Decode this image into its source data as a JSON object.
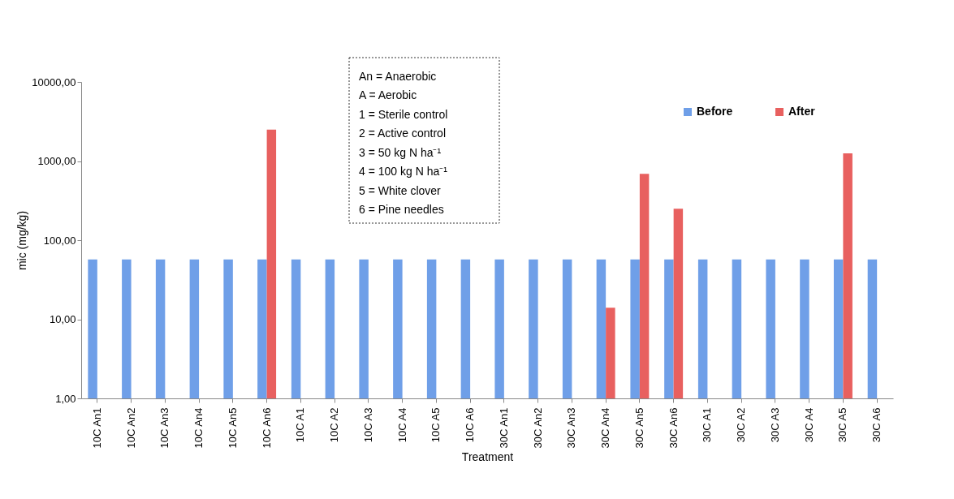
{
  "chart_data": {
    "type": "bar",
    "xlabel": "Treatment",
    "ylabel": "mic (mg/kg)",
    "log": "y",
    "ylim": [
      1,
      10000
    ],
    "yticks": [
      {
        "value": 1,
        "label": "1,00"
      },
      {
        "value": 10,
        "label": "10,00"
      },
      {
        "value": 100,
        "label": "100,00"
      },
      {
        "value": 1000,
        "label": "1000,00"
      },
      {
        "value": 10000,
        "label": "10000,00"
      }
    ],
    "categories": [
      "10C An1",
      "10C An2",
      "10C An3",
      "10C An4",
      "10C An5",
      "10C An6",
      "10C A1",
      "10C A2",
      "10C A3",
      "10C A4",
      "10C A5",
      "10C A6",
      "30C An1",
      "30C An2",
      "30C An3",
      "30C An4",
      "30C An5",
      "30C An6",
      "30C A1",
      "30C A2",
      "30C A3",
      "30C A4",
      "30C A5",
      "30C A6"
    ],
    "series": [
      {
        "name": "Before",
        "color": "#6f9fe8",
        "values": [
          57,
          57,
          57,
          57,
          57,
          57,
          57,
          57,
          57,
          57,
          57,
          57,
          57,
          57,
          57,
          57,
          57,
          57,
          57,
          57,
          57,
          57,
          57,
          57
        ]
      },
      {
        "name": "After",
        "color": "#e8605f",
        "values": [
          null,
          null,
          null,
          null,
          null,
          2500,
          null,
          null,
          null,
          null,
          null,
          null,
          null,
          null,
          null,
          14,
          690,
          250,
          null,
          null,
          null,
          null,
          1250,
          null
        ]
      }
    ],
    "legend": "top right",
    "grid": false,
    "annotations": [
      "An = Anaerobic",
      "A = Aerobic",
      "1 = Sterile control",
      "2 = Active control",
      "3 = 50 kg N ha⁻¹",
      "4 = 100 kg N ha⁻¹",
      "5 = White clover",
      "6 = Pine needles"
    ]
  }
}
